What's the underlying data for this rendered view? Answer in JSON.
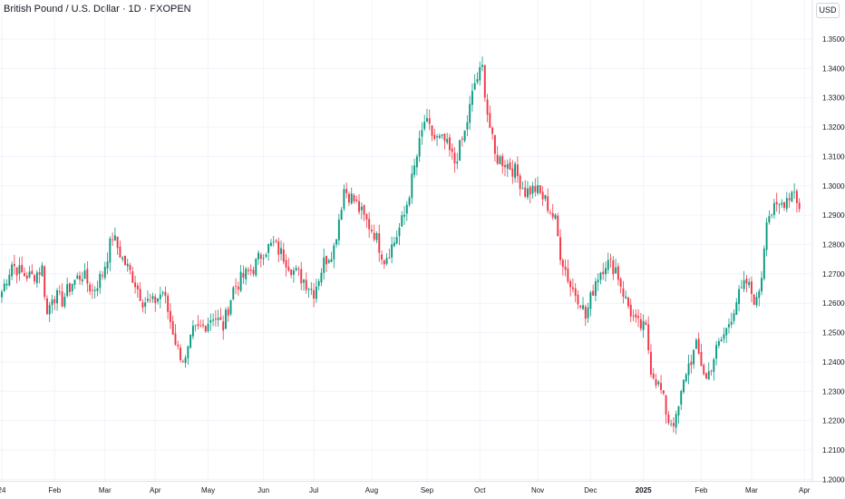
{
  "header": {
    "title": "British Pound / U.S. Dollar · 1D · FXOPEN",
    "currency_button": "USD"
  },
  "chart_data": {
    "type": "candlestick",
    "title": "British Pound / U.S. Dollar · 1D · FXOPEN",
    "ylim": [
      1.1995,
      1.3565
    ],
    "yticks": [
      "1.35000",
      "1.34000",
      "1.33000",
      "1.32000",
      "1.31000",
      "1.30000",
      "1.29000",
      "1.28000",
      "1.27000",
      "1.26000",
      "1.25000",
      "1.24000",
      "1.23000",
      "1.22000",
      "1.21000",
      "1.20000"
    ],
    "xticks": [
      {
        "label": "24",
        "index": 0,
        "bold": false
      },
      {
        "label": "Feb",
        "index": 21,
        "bold": false
      },
      {
        "label": "Mar",
        "index": 41,
        "bold": false
      },
      {
        "label": "Apr",
        "index": 61,
        "bold": false
      },
      {
        "label": "May",
        "index": 82,
        "bold": false
      },
      {
        "label": "Jun",
        "index": 104,
        "bold": false
      },
      {
        "label": "Jul",
        "index": 124,
        "bold": false
      },
      {
        "label": "Aug",
        "index": 147,
        "bold": false
      },
      {
        "label": "Sep",
        "index": 169,
        "bold": false
      },
      {
        "label": "Oct",
        "index": 190,
        "bold": false
      },
      {
        "label": "Nov",
        "index": 213,
        "bold": false
      },
      {
        "label": "Dec",
        "index": 234,
        "bold": false
      },
      {
        "label": "2025",
        "index": 255,
        "bold": true
      },
      {
        "label": "Feb",
        "index": 278,
        "bold": false
      },
      {
        "label": "Mar",
        "index": 298,
        "bold": false
      },
      {
        "label": "Apr",
        "index": 319,
        "bold": false
      }
    ],
    "keypoints": [
      [
        0,
        1.264
      ],
      [
        4,
        1.2735
      ],
      [
        8,
        1.27
      ],
      [
        12,
        1.269
      ],
      [
        16,
        1.272
      ],
      [
        18,
        1.256
      ],
      [
        20,
        1.263
      ],
      [
        24,
        1.261
      ],
      [
        28,
        1.267
      ],
      [
        32,
        1.27
      ],
      [
        36,
        1.264
      ],
      [
        40,
        1.27
      ],
      [
        44,
        1.283
      ],
      [
        48,
        1.275
      ],
      [
        52,
        1.269
      ],
      [
        56,
        1.261
      ],
      [
        60,
        1.26
      ],
      [
        64,
        1.264
      ],
      [
        67,
        1.254
      ],
      [
        70,
        1.244
      ],
      [
        73,
        1.24
      ],
      [
        76,
        1.25
      ],
      [
        80,
        1.252
      ],
      [
        84,
        1.256
      ],
      [
        88,
        1.252
      ],
      [
        92,
        1.265
      ],
      [
        96,
        1.269
      ],
      [
        100,
        1.272
      ],
      [
        104,
        1.278
      ],
      [
        108,
        1.28
      ],
      [
        112,
        1.276
      ],
      [
        116,
        1.271
      ],
      [
        120,
        1.268
      ],
      [
        124,
        1.264
      ],
      [
        128,
        1.274
      ],
      [
        132,
        1.279
      ],
      [
        136,
        1.299
      ],
      [
        140,
        1.295
      ],
      [
        144,
        1.289
      ],
      [
        148,
        1.284
      ],
      [
        152,
        1.275
      ],
      [
        156,
        1.281
      ],
      [
        160,
        1.29
      ],
      [
        164,
        1.306
      ],
      [
        168,
        1.322
      ],
      [
        172,
        1.316
      ],
      [
        176,
        1.315
      ],
      [
        180,
        1.308
      ],
      [
        184,
        1.318
      ],
      [
        188,
        1.335
      ],
      [
        191,
        1.34
      ],
      [
        193,
        1.325
      ],
      [
        196,
        1.31
      ],
      [
        200,
        1.308
      ],
      [
        204,
        1.305
      ],
      [
        208,
        1.298
      ],
      [
        212,
        1.299
      ],
      [
        216,
        1.295
      ],
      [
        220,
        1.288
      ],
      [
        222,
        1.277
      ],
      [
        226,
        1.266
      ],
      [
        230,
        1.261
      ],
      [
        232,
        1.255
      ],
      [
        236,
        1.268
      ],
      [
        240,
        1.274
      ],
      [
        244,
        1.272
      ],
      [
        248,
        1.261
      ],
      [
        252,
        1.253
      ],
      [
        256,
        1.251
      ],
      [
        258,
        1.238
      ],
      [
        262,
        1.23
      ],
      [
        265,
        1.22
      ],
      [
        268,
        1.22
      ],
      [
        272,
        1.237
      ],
      [
        276,
        1.245
      ],
      [
        280,
        1.234
      ],
      [
        284,
        1.244
      ],
      [
        288,
        1.251
      ],
      [
        292,
        1.261
      ],
      [
        296,
        1.267
      ],
      [
        300,
        1.26
      ],
      [
        302,
        1.27
      ],
      [
        304,
        1.29
      ],
      [
        308,
        1.292
      ],
      [
        312,
        1.296
      ],
      [
        315,
        1.299
      ],
      [
        317,
        1.292
      ]
    ]
  }
}
